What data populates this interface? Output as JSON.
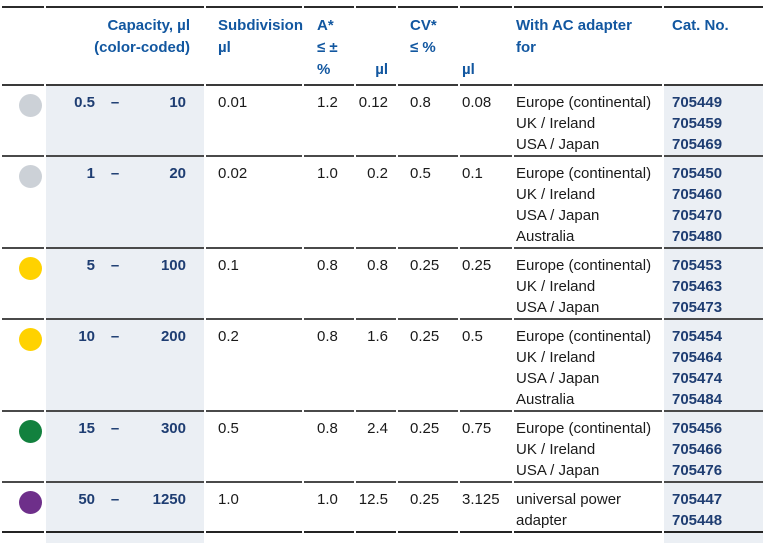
{
  "colors": {
    "header_blue": "#1257a0",
    "value_navy": "#1e3d72",
    "shaded_column_bg": "#ebeff4",
    "rule_dark": "#2b2b2b",
    "rule_gray": "#4a4a4a",
    "dot_gray": "#ccd1d7",
    "dot_yellow": "#ffd200",
    "dot_green": "#12813e",
    "dot_purple": "#6e2f8a"
  },
  "table": {
    "header": {
      "capacity": [
        "Capacity, µl",
        "(color-coded)"
      ],
      "subdivision": [
        "Subdivision",
        "µl"
      ],
      "accuracy": [
        "A*",
        "≤ ± %"
      ],
      "accuracy_ul": "µl",
      "cv": [
        "CV*",
        "≤ %"
      ],
      "cv_ul": "µl",
      "adapter": [
        "With AC adapter",
        "for"
      ],
      "cat_no": "Cat. No."
    },
    "rows": [
      {
        "dot_color": "#ccd1d7",
        "dot_name": "gray",
        "cap_min": "0.5",
        "dash": "–",
        "cap_max": "10",
        "subdivision": "0.01",
        "a_pct": "1.2",
        "a_ul": "0.12",
        "cv_pct": "0.8",
        "cv_ul": "0.08",
        "adapters": [
          "Europe (continental)",
          "UK / Ireland",
          "USA / Japan"
        ],
        "cat_nos": [
          "705449",
          "705459",
          "705469"
        ]
      },
      {
        "dot_color": "#ccd1d7",
        "dot_name": "gray",
        "cap_min": "1",
        "dash": "–",
        "cap_max": "20",
        "subdivision": "0.02",
        "a_pct": "1.0",
        "a_ul": "0.2",
        "cv_pct": "0.5",
        "cv_ul": "0.1",
        "adapters": [
          "Europe (continental)",
          "UK / Ireland",
          "USA / Japan",
          "Australia"
        ],
        "cat_nos": [
          "705450",
          "705460",
          "705470",
          "705480"
        ]
      },
      {
        "dot_color": "#ffd200",
        "dot_name": "yellow",
        "cap_min": "5",
        "dash": "–",
        "cap_max": "100",
        "subdivision": "0.1",
        "a_pct": "0.8",
        "a_ul": "0.8",
        "cv_pct": "0.25",
        "cv_ul": "0.25",
        "adapters": [
          "Europe (continental)",
          "UK / Ireland",
          "USA / Japan"
        ],
        "cat_nos": [
          "705453",
          "705463",
          "705473"
        ]
      },
      {
        "dot_color": "#ffd200",
        "dot_name": "yellow",
        "cap_min": "10",
        "dash": "–",
        "cap_max": "200",
        "subdivision": "0.2",
        "a_pct": "0.8",
        "a_ul": "1.6",
        "cv_pct": "0.25",
        "cv_ul": "0.5",
        "adapters": [
          "Europe (continental)",
          "UK / Ireland",
          "USA / Japan",
          "Australia"
        ],
        "cat_nos": [
          "705454",
          "705464",
          "705474",
          "705484"
        ]
      },
      {
        "dot_color": "#12813e",
        "dot_name": "green",
        "cap_min": "15",
        "dash": "–",
        "cap_max": "300",
        "subdivision": "0.5",
        "a_pct": "0.8",
        "a_ul": "2.4",
        "cv_pct": "0.25",
        "cv_ul": "0.75",
        "adapters": [
          "Europe (continental)",
          "UK / Ireland",
          "USA / Japan"
        ],
        "cat_nos": [
          "705456",
          "705466",
          "705476"
        ]
      },
      {
        "dot_color": "#6e2f8a",
        "dot_name": "purple",
        "cap_min": "50",
        "dash": "–",
        "cap_max": "1250",
        "subdivision": "1.0",
        "a_pct": "1.0",
        "a_ul": "12.5",
        "cv_pct": "0.25",
        "cv_ul": "3.125",
        "adapters": [
          "universal power adapter"
        ],
        "cat_nos": [
          "705447",
          "705448"
        ]
      }
    ]
  }
}
